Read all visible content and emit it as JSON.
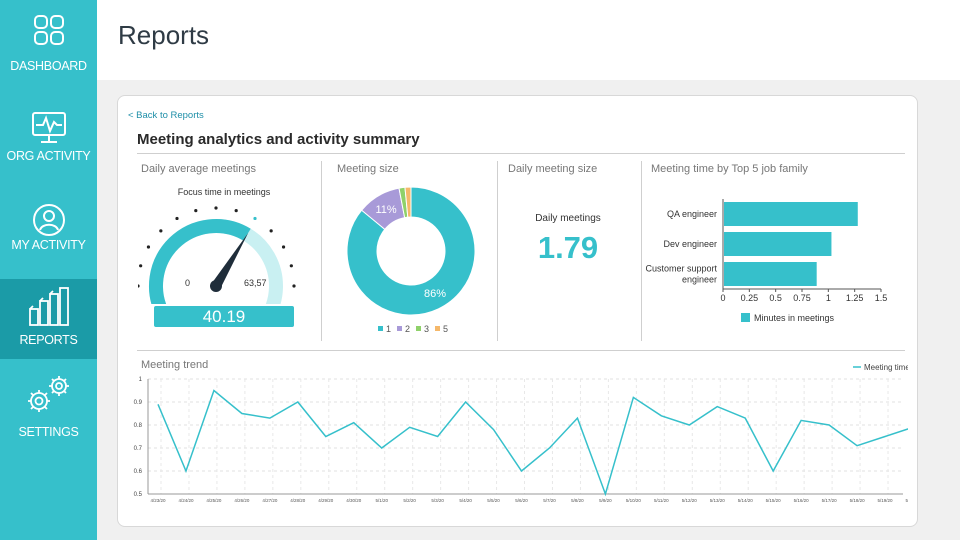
{
  "sidebar": {
    "items": [
      {
        "label": "DASHBOARD",
        "icon": "dashboard-icon"
      },
      {
        "label": "ORG ACTIVITY",
        "icon": "monitor-pulse-icon"
      },
      {
        "label": "MY ACTIVITY",
        "icon": "user-icon"
      },
      {
        "label": "REPORTS",
        "icon": "bar-chart-icon"
      },
      {
        "label": "SETTINGS",
        "icon": "gears-icon"
      }
    ],
    "active": "REPORTS"
  },
  "header": {
    "title": "Reports"
  },
  "colors": {
    "sidebar": "#36c0cb",
    "sidebar_active": "#1b9ba7",
    "accent": "#36c0cb",
    "purple": "#a89ad8",
    "green": "#8fd16a",
    "orange": "#f5b86a"
  },
  "report": {
    "back_link": "< Back to Reports",
    "title": "Meeting analytics and activity summary",
    "gauge_panel": {
      "title": "Daily average meetings",
      "subtitle": "Focus time in meetings",
      "min_label": "0",
      "max_label": "63,57",
      "value": "40.19",
      "fraction": 0.63
    },
    "meeting_size": {
      "title": "Meeting size",
      "slices": [
        {
          "name": "1",
          "pct": 86,
          "label": "86%",
          "color": "#36c0cb"
        },
        {
          "name": "2",
          "pct": 11,
          "label": "11%",
          "color": "#a89ad8"
        },
        {
          "name": "3",
          "pct": 1.5,
          "label": "",
          "color": "#8fd16a"
        },
        {
          "name": "5",
          "pct": 1.5,
          "label": "",
          "color": "#f5b86a"
        }
      ]
    },
    "daily_size": {
      "title": "Daily meeting size",
      "label": "Daily meetings",
      "value": "1.79"
    },
    "job_family": {
      "title": "Meeting time by Top 5 job family",
      "categories": [
        "QA engineer",
        "Dev engineer",
        "Customer support engineer"
      ],
      "values": [
        1.27,
        1.02,
        0.88
      ],
      "ticks": [
        "0",
        "0.25",
        "0.5",
        "0.75",
        "1",
        "1.25",
        "1.5"
      ],
      "legend": "Minutes in meetings"
    },
    "trend": {
      "title": "Meeting trend",
      "legend": "Meeting time"
    }
  },
  "chart_data": [
    {
      "type": "bar",
      "orientation": "horizontal",
      "title": "Meeting time by Top 5 job family",
      "categories": [
        "QA engineer",
        "Dev engineer",
        "Customer support engineer"
      ],
      "series": [
        {
          "name": "Minutes in meetings",
          "values": [
            1.27,
            1.02,
            0.88
          ]
        }
      ],
      "xlim": [
        0,
        1.5
      ]
    },
    {
      "type": "line",
      "title": "Meeting trend",
      "x": [
        "4/23/20",
        "4/24/20",
        "4/25/20",
        "4/26/20",
        "4/27/20",
        "4/28/20",
        "4/29/20",
        "4/30/20",
        "5/1/20",
        "5/2/20",
        "5/3/20",
        "5/4/20",
        "5/5/20",
        "5/6/20",
        "5/7/20",
        "5/8/20",
        "5/9/20",
        "5/10/20",
        "5/11/20",
        "5/12/20",
        "5/13/20",
        "5/14/20",
        "5/15/20",
        "5/16/20",
        "5/17/20",
        "5/18/20",
        "5/19/20",
        "5/20/20"
      ],
      "series": [
        {
          "name": "Meeting time",
          "values": [
            0.89,
            0.6,
            0.95,
            0.85,
            0.83,
            0.9,
            0.75,
            0.81,
            0.7,
            0.79,
            0.75,
            0.9,
            0.78,
            0.6,
            0.7,
            0.83,
            0.5,
            0.92,
            0.84,
            0.8,
            0.88,
            0.83,
            0.6,
            0.82,
            0.8,
            0.71,
            0.75,
            0.79
          ]
        }
      ],
      "ylim": [
        0.5,
        1
      ],
      "yticks": [
        "0.5",
        "0.6",
        "0.7",
        "0.8",
        "0.9",
        "1"
      ],
      "grid": true,
      "legend": "top-right"
    }
  ]
}
